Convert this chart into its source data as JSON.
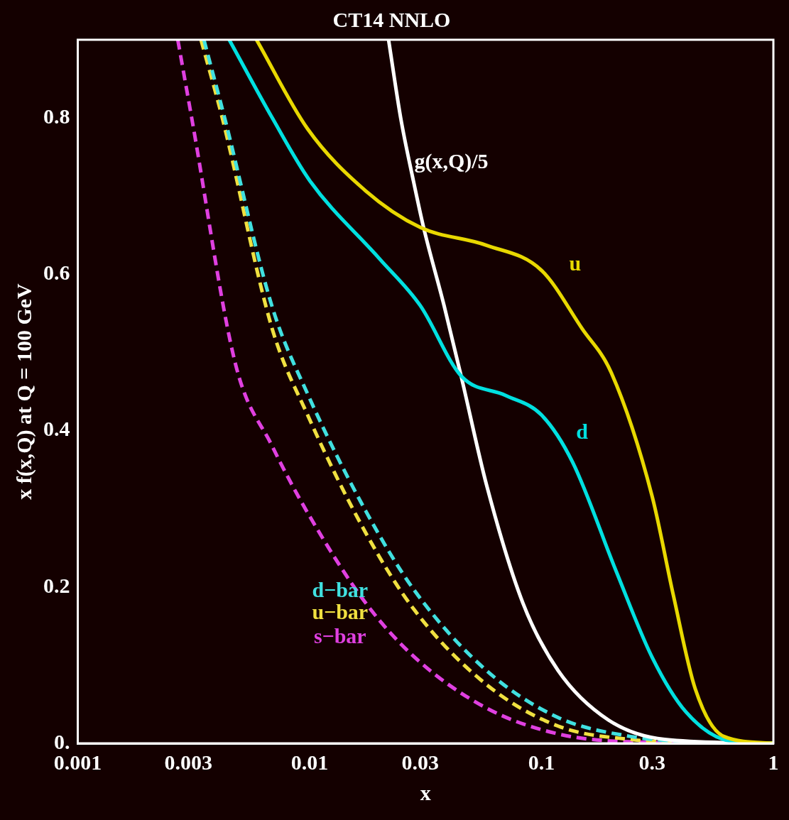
{
  "chart_data": {
    "type": "line",
    "title": "CT14 NNLO",
    "xlabel": "x",
    "ylabel": "x f(x,Q) at Q = 100 GeV",
    "log": "x",
    "grid": false,
    "legend": false,
    "marker": "none",
    "xlim": [
      0.001,
      1
    ],
    "xticks": [
      0.001,
      0.003,
      0.01,
      0.03,
      0.1,
      0.3,
      1
    ],
    "ylim": [
      0,
      0.9
    ],
    "yticks": [
      {
        "value": 0,
        "label": "0."
      },
      0.2,
      0.4,
      0.6,
      0.8
    ],
    "series": [
      {
        "name": "u",
        "color": "#e8d800",
        "line_style": "solid",
        "x": [
          0.0059,
          0.0098,
          0.0174,
          0.03,
          0.058,
          0.1,
          0.15,
          0.2,
          0.3,
          0.37,
          0.46,
          0.61,
          1
        ],
        "values": [
          0.9,
          0.786,
          0.707,
          0.66,
          0.637,
          0.605,
          0.53,
          0.474,
          0.316,
          0.19,
          0.07,
          0.009,
          0
        ]
      },
      {
        "name": "d",
        "color": "#00e0e0",
        "line_style": "solid",
        "x": [
          0.0045,
          0.0069,
          0.01,
          0.02,
          0.03,
          0.045,
          0.07,
          0.1,
          0.136,
          0.21,
          0.3,
          0.42,
          0.65,
          1
        ],
        "values": [
          0.9,
          0.8,
          0.72,
          0.62,
          0.56,
          0.47,
          0.445,
          0.42,
          0.36,
          0.22,
          0.11,
          0.04,
          0.003,
          0
        ]
      },
      {
        "name": "g(x,Q)/5",
        "color": "#ffffff",
        "line_style": "solid",
        "x": [
          0.0219,
          0.0247,
          0.028,
          0.031,
          0.038,
          0.045,
          0.058,
          0.083,
          0.118,
          0.194,
          0.34,
          1
        ],
        "values": [
          0.9,
          0.8,
          0.72,
          0.66,
          0.56,
          0.47,
          0.33,
          0.18,
          0.093,
          0.03,
          0.005,
          0
        ]
      },
      {
        "name": "d−bar",
        "color": "#40e0e0",
        "line_style": "dashed",
        "x": [
          0.0035,
          0.0043,
          0.0069,
          0.0098,
          0.0174,
          0.0284,
          0.058,
          0.118,
          0.24,
          0.49,
          1
        ],
        "values": [
          0.9,
          0.8,
          0.558,
          0.447,
          0.298,
          0.195,
          0.093,
          0.033,
          0.009,
          0.001,
          0
        ]
      },
      {
        "name": "u−bar",
        "color": "#f0e040",
        "line_style": "dashed",
        "x": [
          0.0034,
          0.0042,
          0.0069,
          0.0098,
          0.0174,
          0.0284,
          0.058,
          0.118,
          0.24,
          0.49,
          1
        ],
        "values": [
          0.9,
          0.8,
          0.53,
          0.42,
          0.27,
          0.17,
          0.075,
          0.022,
          0.005,
          0.001,
          0
        ]
      },
      {
        "name": "s−bar",
        "color": "#e040e0",
        "line_style": "dashed",
        "x": [
          0.0027,
          0.0031,
          0.0048,
          0.0069,
          0.0098,
          0.0174,
          0.0284,
          0.058,
          0.118,
          0.24,
          1
        ],
        "values": [
          0.9,
          0.8,
          0.484,
          0.38,
          0.295,
          0.18,
          0.11,
          0.045,
          0.012,
          0.002,
          0
        ]
      }
    ]
  }
}
